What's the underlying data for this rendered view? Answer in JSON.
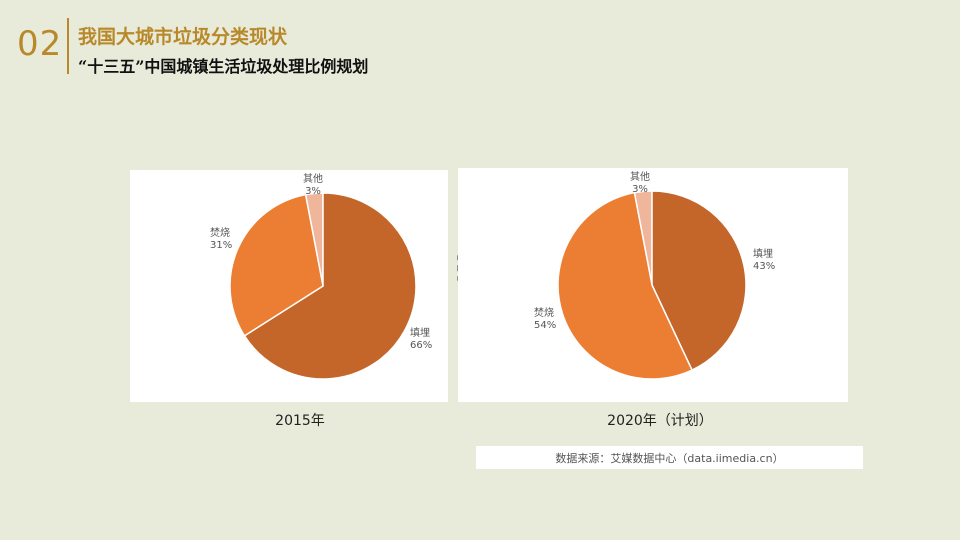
{
  "header": {
    "number": "02",
    "title": "我国大城市垃圾分类现状",
    "subtitle": "“十三五”中国城镇生活垃圾处理比例规划"
  },
  "source": "数据来源：艾媒数据中心（data.iimedia.cn）",
  "chart_data": [
    {
      "type": "pie",
      "caption": "2015年",
      "slices": [
        {
          "label": "填埋",
          "value": 66,
          "display": "66%",
          "color": "#c4652a"
        },
        {
          "label": "焚烧",
          "value": 31,
          "display": "31%",
          "color": "#ec7e33"
        },
        {
          "label": "其他",
          "value": 3,
          "display": "3%",
          "color": "#efb69c"
        }
      ]
    },
    {
      "type": "pie",
      "caption": "2020年（计划）",
      "slices": [
        {
          "label": "填埋",
          "value": 43,
          "display": "43%",
          "color": "#c4652a"
        },
        {
          "label": "焚烧",
          "value": 54,
          "display": "54%",
          "color": "#ec7e33"
        },
        {
          "label": "其他",
          "value": 3,
          "display": "3%",
          "color": "#efb69c"
        }
      ]
    }
  ]
}
